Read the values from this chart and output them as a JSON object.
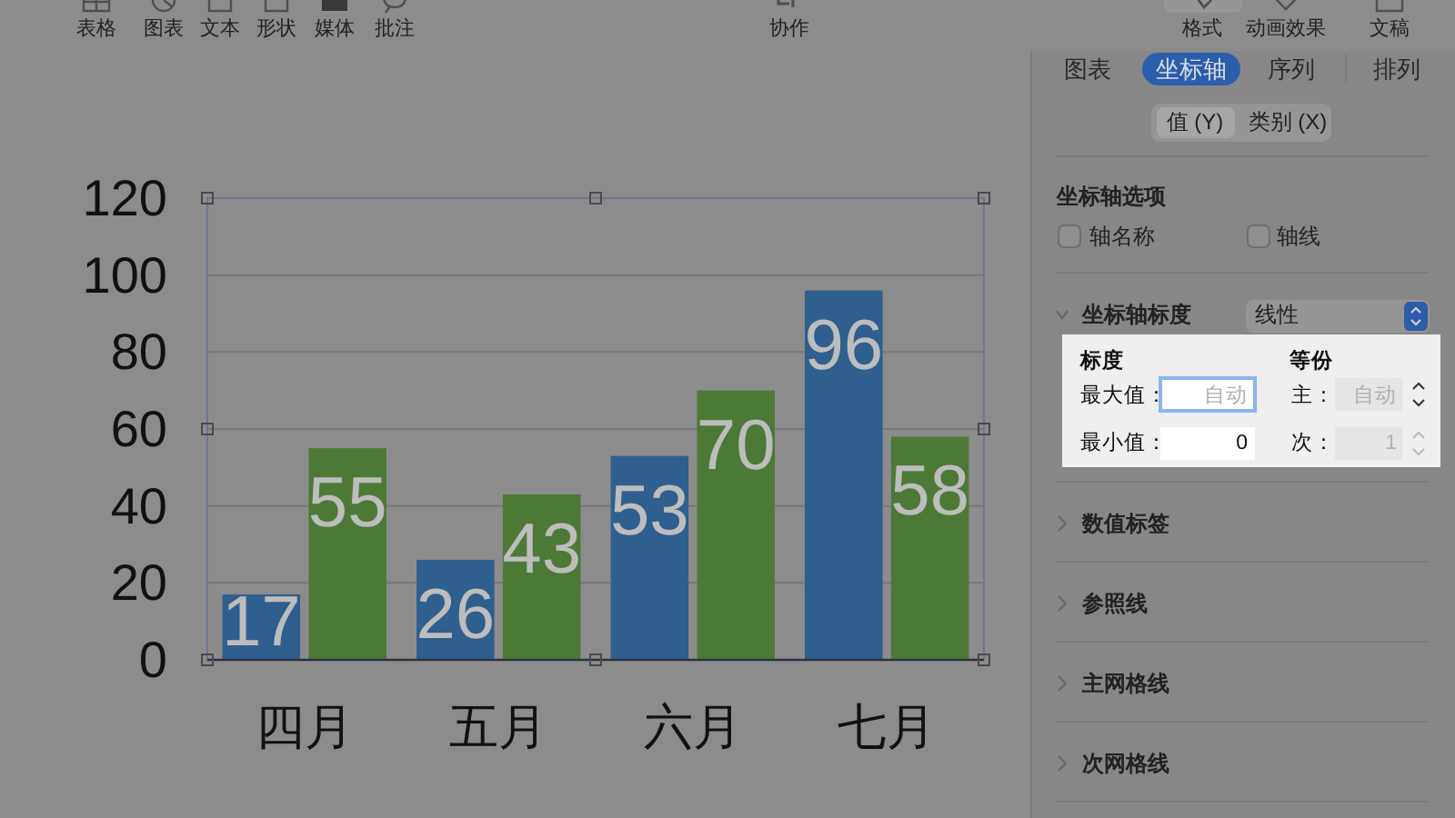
{
  "chart_data": [
    {
      "type": "bar",
      "categories": [
        "四月",
        "五月",
        "六月",
        "七月"
      ],
      "series": [
        {
          "color": "#2e5f8e",
          "values": [
            17,
            26,
            53,
            96
          ]
        },
        {
          "color": "#4c7a36",
          "values": [
            55,
            43,
            70,
            58
          ]
        }
      ],
      "ylim": [
        0,
        120
      ],
      "yticks": [
        0,
        20,
        40,
        60,
        80,
        100,
        120
      ],
      "grid": "y",
      "data_labels": true
    },
    {
      "type": "other",
      "annotations": [
        "表格",
        "图表",
        "文本",
        "形状",
        "媒体",
        "批注",
        "协作",
        "格式",
        "动画效果",
        "文稿"
      ]
    },
    {
      "type": "other",
      "annotations": [
        "图表",
        "坐标轴",
        "序列",
        "排列",
        "值 (Y)",
        "类别 (X)",
        "坐标轴选项",
        "轴名称",
        "轴线",
        "坐标轴标度",
        "线性",
        "标度",
        "等份",
        "最大值：",
        "自动",
        "主：",
        "自动",
        "最小值：",
        "0",
        "次：",
        "1",
        "数值标签",
        "参照线",
        "主网格线",
        "次网格线"
      ]
    }
  ]
}
